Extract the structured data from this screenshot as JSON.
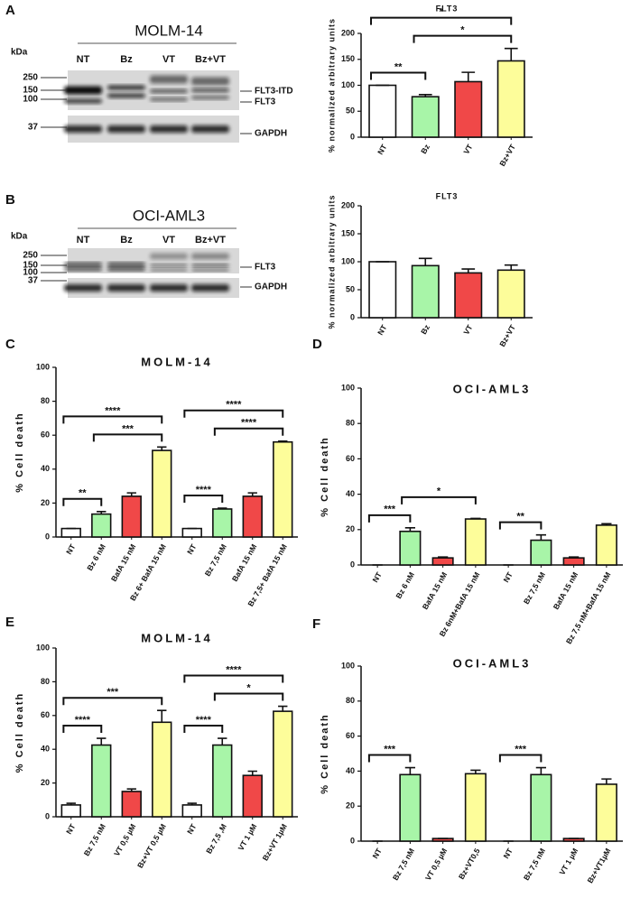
{
  "panel_labels": [
    "A",
    "B",
    "C",
    "D",
    "E",
    "F"
  ],
  "blots": [
    {
      "title": "MOLM-14",
      "unit_label": "kDa",
      "lanes": [
        "NT",
        "Bz",
        "VT",
        "Bz+VT"
      ],
      "markers": [
        "250",
        "150",
        "100"
      ],
      "loading_marker": "37",
      "bands": [
        "FLT3-ITD",
        "FLT3"
      ],
      "loading_control": "GAPDH"
    },
    {
      "title": "OCI-AML3",
      "unit_label": "kDa",
      "lanes": [
        "NT",
        "Bz",
        "VT",
        "Bz+VT"
      ],
      "markers": [
        "250",
        "150",
        "100"
      ],
      "loading_marker": "37",
      "bands": [
        "FLT3"
      ],
      "loading_control": "GAPDH"
    }
  ],
  "chart_data": [
    {
      "type": "bar",
      "title": "FLT3",
      "ylabel": "% normalized arbitrary units",
      "categories": [
        "NT",
        "Bz",
        "VT",
        "Bz+VT"
      ],
      "values": [
        100,
        78,
        107,
        147
      ],
      "errors": [
        0,
        4,
        18,
        24
      ],
      "colors": [
        "#ffffff",
        "#a8f5a8",
        "#f04848",
        "#fdfd9a"
      ],
      "ylim": [
        0,
        200
      ],
      "yticks": [
        0,
        50,
        100,
        150,
        200
      ],
      "annotations": [
        {
          "from": 0,
          "to": 1,
          "label": "**"
        },
        {
          "from": 1,
          "to": 3,
          "label": "*"
        },
        {
          "from": 0,
          "to": 3,
          "label": "*"
        }
      ]
    },
    {
      "type": "bar",
      "title": "FLT3",
      "ylabel": "% normalized arbitrary units",
      "categories": [
        "NT",
        "Bz",
        "VT",
        "Bz+VT"
      ],
      "values": [
        100,
        93,
        80,
        85
      ],
      "errors": [
        0,
        13,
        7,
        9
      ],
      "colors": [
        "#ffffff",
        "#a8f5a8",
        "#f04848",
        "#fdfd9a"
      ],
      "ylim": [
        0,
        200
      ],
      "yticks": [
        0,
        50,
        100,
        150,
        200
      ],
      "annotations": []
    },
    {
      "type": "bar",
      "title": "MOLM-14",
      "ylabel": "% Cell death",
      "categories": [
        "NT",
        "Bz 6 nM",
        "BafA 15 nM",
        "Bz 6+ BafA 15 nM",
        "NT",
        "Bz 7,5 nM",
        "BafA 15 nM",
        "Bz 7,5+ BafA 15 nM"
      ],
      "values": [
        5,
        13.5,
        24,
        51,
        5,
        16.5,
        24,
        56
      ],
      "errors": [
        0,
        1.5,
        2,
        2,
        0,
        0.5,
        2,
        0.5
      ],
      "colors": [
        "#ffffff",
        "#a8f5a8",
        "#f04848",
        "#fdfd9a",
        "#ffffff",
        "#a8f5a8",
        "#f04848",
        "#fdfd9a"
      ],
      "ylim": [
        0,
        100
      ],
      "yticks": [
        0,
        20,
        40,
        60,
        80,
        100
      ],
      "annotations": [
        {
          "from": 0,
          "to": 1,
          "label": "**"
        },
        {
          "from": 1,
          "to": 3,
          "label": "***"
        },
        {
          "from": 0,
          "to": 3,
          "label": "****"
        },
        {
          "from": 4,
          "to": 5,
          "label": "****"
        },
        {
          "from": 5,
          "to": 7,
          "label": "****"
        },
        {
          "from": 4,
          "to": 7,
          "label": "****"
        }
      ]
    },
    {
      "type": "bar",
      "title": "OCI-AML3",
      "ylabel": "% Cell death",
      "categories": [
        "NT",
        "Bz 6 nM",
        "BafA 15 nM",
        "Bz 6nM+BafA 15 nM",
        "NT",
        "Bz 7,5 nM",
        "BafA 15 nM",
        "Bz 7,5 nM+BafA 15 nM"
      ],
      "values": [
        0,
        19,
        4,
        26,
        0,
        14,
        4,
        22.5
      ],
      "errors": [
        0,
        2,
        0.5,
        0.3,
        0,
        3,
        0.5,
        0.8
      ],
      "colors": [
        "#ffffff",
        "#a8f5a8",
        "#f04848",
        "#fdfd9a",
        "#ffffff",
        "#a8f5a8",
        "#f04848",
        "#fdfd9a"
      ],
      "ylim": [
        0,
        100
      ],
      "yticks": [
        0,
        20,
        40,
        60,
        80,
        100
      ],
      "annotations": [
        {
          "from": 0,
          "to": 1,
          "label": "***"
        },
        {
          "from": 1,
          "to": 3,
          "label": "*"
        },
        {
          "from": 4,
          "to": 5,
          "label": "**"
        }
      ]
    },
    {
      "type": "bar",
      "title": "MOLM-14",
      "ylabel": "% Cell death",
      "categories": [
        "NT",
        "Bz 7,5 nM",
        "VT 0,5 µM",
        "Bz+VT 0,5 µM",
        "NT",
        "Bz 7,5 ,M",
        "VT 1 µM",
        "Bz+VT 1µM"
      ],
      "values": [
        7,
        42.5,
        15,
        56,
        7,
        42.5,
        24.5,
        62.5
      ],
      "errors": [
        1,
        4,
        1.5,
        7,
        1,
        4,
        2.5,
        3
      ],
      "colors": [
        "#ffffff",
        "#a8f5a8",
        "#f04848",
        "#fdfd9a",
        "#ffffff",
        "#a8f5a8",
        "#f04848",
        "#fdfd9a"
      ],
      "ylim": [
        0,
        100
      ],
      "yticks": [
        0,
        20,
        40,
        60,
        80,
        100
      ],
      "annotations": [
        {
          "from": 0,
          "to": 1,
          "label": "****"
        },
        {
          "from": 0,
          "to": 3,
          "label": "***"
        },
        {
          "from": 4,
          "to": 5,
          "label": "****"
        },
        {
          "from": 5,
          "to": 7,
          "label": "*"
        },
        {
          "from": 4,
          "to": 7,
          "label": "****"
        }
      ]
    },
    {
      "type": "bar",
      "title": "OCI-AML3",
      "ylabel": "% Cell death",
      "categories": [
        "NT",
        "Bz 7,5 nM",
        "VT 0,5 µM",
        "Bz+VT0,5",
        "NT",
        "Bz 7,5 nM",
        "VT 1 µM",
        "Bz+VT1µM"
      ],
      "values": [
        0,
        38,
        1.5,
        38.5,
        0,
        38,
        1.5,
        32.5
      ],
      "errors": [
        0,
        4,
        0,
        2,
        0,
        4,
        0,
        3
      ],
      "colors": [
        "#ffffff",
        "#a8f5a8",
        "#f04848",
        "#fdfd9a",
        "#ffffff",
        "#a8f5a8",
        "#f04848",
        "#fdfd9a"
      ],
      "ylim": [
        0,
        100
      ],
      "yticks": [
        0,
        20,
        40,
        60,
        80,
        100
      ],
      "annotations": [
        {
          "from": 0,
          "to": 1,
          "label": "***"
        },
        {
          "from": 4,
          "to": 5,
          "label": "***"
        }
      ]
    }
  ]
}
